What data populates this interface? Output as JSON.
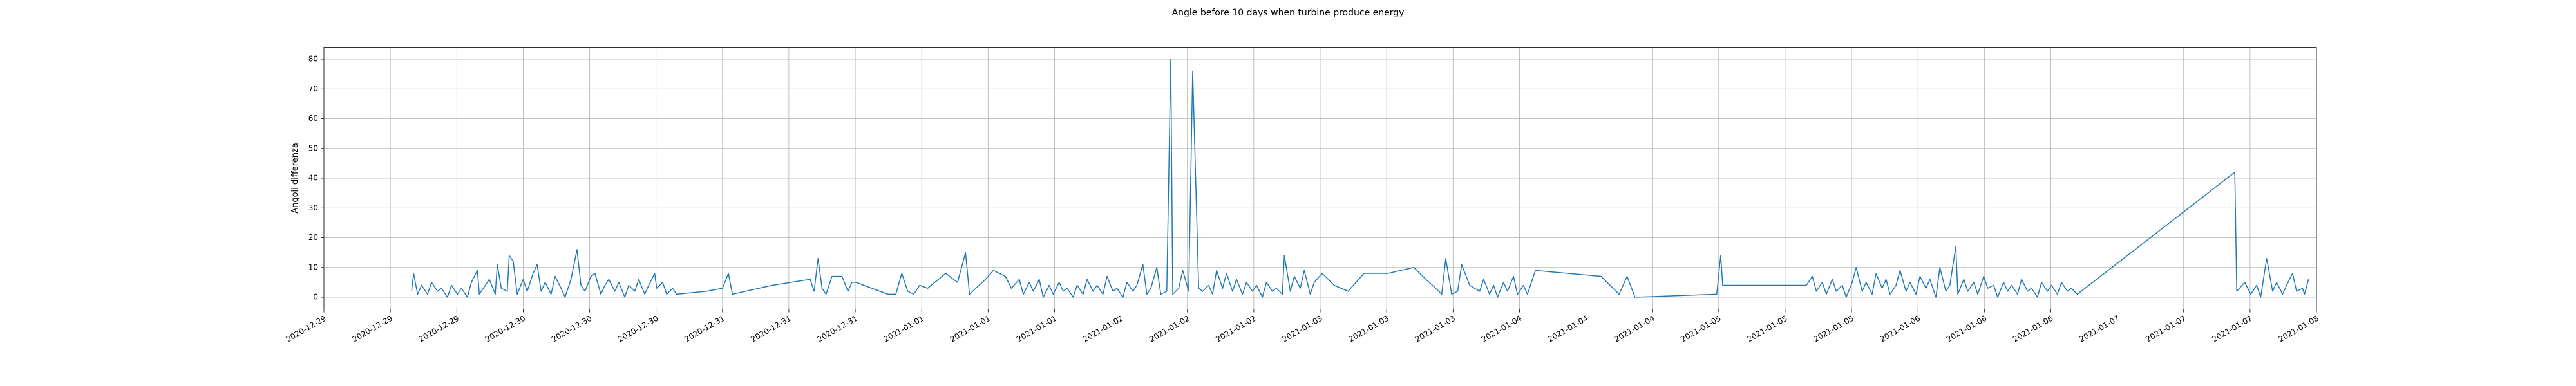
{
  "chart_data": {
    "type": "line",
    "title": "Angle before 10 days when turbine produce energy",
    "ylabel": "Angoli differenza",
    "color": "#1f77b4",
    "grid": true,
    "xlim": [
      18625,
      18635
    ],
    "ylim": [
      -4,
      84
    ],
    "yticks": [
      0,
      10,
      20,
      30,
      40,
      50,
      60,
      70,
      80
    ],
    "xticks": [
      {
        "value": 18625,
        "label": "2020-12-29"
      },
      {
        "value": 18625.3333,
        "label": "2020-12-29"
      },
      {
        "value": 18625.6667,
        "label": "2020-12-29"
      },
      {
        "value": 18626,
        "label": "2020-12-30"
      },
      {
        "value": 18626.3333,
        "label": "2020-12-30"
      },
      {
        "value": 18626.6667,
        "label": "2020-12-30"
      },
      {
        "value": 18627,
        "label": "2020-12-31"
      },
      {
        "value": 18627.3333,
        "label": "2020-12-31"
      },
      {
        "value": 18627.6667,
        "label": "2020-12-31"
      },
      {
        "value": 18628,
        "label": "2021-01-01"
      },
      {
        "value": 18628.3333,
        "label": "2021-01-01"
      },
      {
        "value": 18628.6667,
        "label": "2021-01-01"
      },
      {
        "value": 18629,
        "label": "2021-01-02"
      },
      {
        "value": 18629.3333,
        "label": "2021-01-02"
      },
      {
        "value": 18629.6667,
        "label": "2021-01-02"
      },
      {
        "value": 18630,
        "label": "2021-01-03"
      },
      {
        "value": 18630.3333,
        "label": "2021-01-03"
      },
      {
        "value": 18630.6667,
        "label": "2021-01-03"
      },
      {
        "value": 18631,
        "label": "2021-01-04"
      },
      {
        "value": 18631.3333,
        "label": "2021-01-04"
      },
      {
        "value": 18631.6667,
        "label": "2021-01-04"
      },
      {
        "value": 18632,
        "label": "2021-01-05"
      },
      {
        "value": 18632.3333,
        "label": "2021-01-05"
      },
      {
        "value": 18632.6667,
        "label": "2021-01-05"
      },
      {
        "value": 18633,
        "label": "2021-01-06"
      },
      {
        "value": 18633.3333,
        "label": "2021-01-06"
      },
      {
        "value": 18633.6667,
        "label": "2021-01-06"
      },
      {
        "value": 18634,
        "label": "2021-01-07"
      },
      {
        "value": 18634.3333,
        "label": "2021-01-07"
      },
      {
        "value": 18634.6667,
        "label": "2021-01-07"
      },
      {
        "value": 18635,
        "label": "2021-01-08"
      }
    ],
    "x": [
      18625.44,
      18625.45,
      18625.47,
      18625.49,
      18625.52,
      18625.54,
      18625.57,
      18625.59,
      18625.62,
      18625.64,
      18625.67,
      18625.69,
      18625.72,
      18625.74,
      18625.77,
      18625.78,
      18625.81,
      18625.83,
      18625.86,
      18625.87,
      18625.89,
      18625.92,
      18625.93,
      18625.95,
      18625.97,
      18626.0,
      18626.02,
      18626.05,
      18626.07,
      18626.09,
      18626.11,
      18626.14,
      18626.16,
      18626.19,
      18626.21,
      18626.24,
      18626.27,
      18626.29,
      18626.31,
      18626.34,
      18626.36,
      18626.39,
      18626.41,
      18626.43,
      18626.46,
      18626.48,
      18626.51,
      18626.53,
      18626.56,
      18626.58,
      18626.61,
      18626.63,
      18626.66,
      18626.67,
      18626.7,
      18626.72,
      18626.75,
      18626.77,
      18626.92,
      18627.0,
      18627.03,
      18627.05,
      18627.25,
      18627.44,
      18627.46,
      18627.48,
      18627.5,
      18627.52,
      18627.55,
      18627.6,
      18627.63,
      18627.65,
      18627.67,
      18627.83,
      18627.87,
      18627.9,
      18627.93,
      18627.96,
      18627.99,
      18628.03,
      18628.12,
      18628.18,
      18628.22,
      18628.24,
      18628.32,
      18628.36,
      18628.42,
      18628.45,
      18628.49,
      18628.51,
      18628.54,
      18628.56,
      18628.59,
      18628.61,
      18628.64,
      18628.66,
      18628.69,
      18628.71,
      18628.73,
      18628.76,
      18628.78,
      18628.81,
      18628.83,
      18628.86,
      18628.88,
      18628.91,
      18628.93,
      18628.96,
      18628.98,
      18629.01,
      18629.03,
      18629.06,
      18629.08,
      18629.11,
      18629.13,
      18629.15,
      18629.18,
      18629.2,
      18629.23,
      18629.25,
      18629.26,
      18629.29,
      18629.31,
      18629.34,
      18629.36,
      18629.39,
      18629.41,
      18629.44,
      18629.46,
      18629.48,
      18629.51,
      18629.53,
      18629.56,
      18629.58,
      18629.61,
      18629.63,
      18629.66,
      18629.68,
      18629.71,
      18629.73,
      18629.76,
      18629.78,
      18629.81,
      18629.82,
      18629.85,
      18629.87,
      18629.9,
      18629.92,
      18629.95,
      18629.97,
      18630.01,
      18630.07,
      18630.14,
      18630.22,
      18630.34,
      18630.47,
      18630.53,
      18630.58,
      18630.61,
      18630.63,
      18630.66,
      18630.69,
      18630.71,
      18630.75,
      18630.8,
      18630.82,
      18630.85,
      18630.87,
      18630.89,
      18630.92,
      18630.94,
      18630.97,
      18630.99,
      18631.02,
      18631.04,
      18631.08,
      18631.41,
      18631.5,
      18631.54,
      18631.58,
      18631.99,
      18632.01,
      18632.02,
      18632.44,
      18632.47,
      18632.49,
      18632.52,
      18632.54,
      18632.57,
      18632.59,
      18632.62,
      18632.64,
      18632.67,
      18632.69,
      18632.72,
      18632.74,
      18632.77,
      18632.79,
      18632.82,
      18632.84,
      18632.86,
      18632.89,
      18632.91,
      18632.94,
      18632.96,
      18632.99,
      18633.01,
      18633.04,
      18633.06,
      18633.09,
      18633.11,
      18633.14,
      18633.16,
      18633.19,
      18633.2,
      18633.23,
      18633.25,
      18633.28,
      18633.3,
      18633.33,
      18633.35,
      18633.38,
      18633.4,
      18633.43,
      18633.45,
      18633.47,
      18633.5,
      18633.52,
      18633.55,
      18633.57,
      18633.6,
      18633.62,
      18633.65,
      18633.67,
      18633.7,
      18633.72,
      18633.75,
      18633.77,
      18633.8,
      18634.59,
      18634.6,
      18634.64,
      18634.67,
      18634.7,
      18634.72,
      18634.75,
      18634.78,
      18634.8,
      18634.83,
      18634.85,
      18634.88,
      18634.9,
      18634.93,
      18634.94,
      18634.96
    ],
    "values": [
      2,
      8,
      1,
      4,
      1,
      5,
      2,
      3,
      0,
      4,
      1,
      3,
      0,
      5,
      9,
      1,
      4,
      6,
      1,
      11,
      3,
      2,
      14,
      12,
      1,
      6,
      2,
      8,
      11,
      2,
      5,
      1,
      7,
      3,
      0,
      6,
      16,
      4,
      2,
      7,
      8,
      1,
      4,
      6,
      2,
      5,
      0,
      4,
      2,
      6,
      1,
      4,
      8,
      3,
      5,
      1,
      3,
      1,
      2,
      3,
      8,
      1,
      4,
      6,
      2,
      13,
      3,
      1,
      7,
      7,
      2,
      5,
      5,
      1,
      1,
      8,
      2,
      1,
      4,
      3,
      8,
      5,
      15,
      1,
      6,
      9,
      7,
      3,
      6,
      1,
      5,
      2,
      6,
      0,
      4,
      1,
      5,
      2,
      3,
      0,
      4,
      1,
      6,
      2,
      4,
      1,
      7,
      2,
      3,
      0,
      5,
      2,
      4,
      11,
      1,
      3,
      10,
      1,
      2,
      80,
      1,
      3,
      9,
      2,
      76,
      3,
      2,
      4,
      1,
      9,
      3,
      8,
      2,
      6,
      1,
      5,
      2,
      4,
      0,
      5,
      2,
      3,
      1,
      14,
      2,
      7,
      3,
      9,
      1,
      5,
      8,
      4,
      2,
      8,
      8,
      10,
      6,
      3,
      1,
      13,
      1,
      2,
      11,
      4,
      2,
      6,
      1,
      4,
      0,
      5,
      2,
      7,
      1,
      4,
      1,
      9,
      7,
      1,
      7,
      0,
      1,
      14,
      4,
      4,
      7,
      2,
      5,
      1,
      6,
      2,
      4,
      0,
      5,
      10,
      2,
      5,
      1,
      8,
      3,
      6,
      1,
      4,
      9,
      2,
      5,
      1,
      7,
      3,
      6,
      0,
      10,
      2,
      4,
      17,
      1,
      6,
      2,
      5,
      1,
      7,
      3,
      4,
      0,
      5,
      2,
      4,
      1,
      6,
      2,
      3,
      0,
      5,
      2,
      4,
      1,
      5,
      2,
      3,
      1,
      42,
      2,
      5,
      1,
      4,
      0,
      13,
      2,
      5,
      1,
      4,
      8,
      2,
      3,
      1,
      6
    ]
  }
}
